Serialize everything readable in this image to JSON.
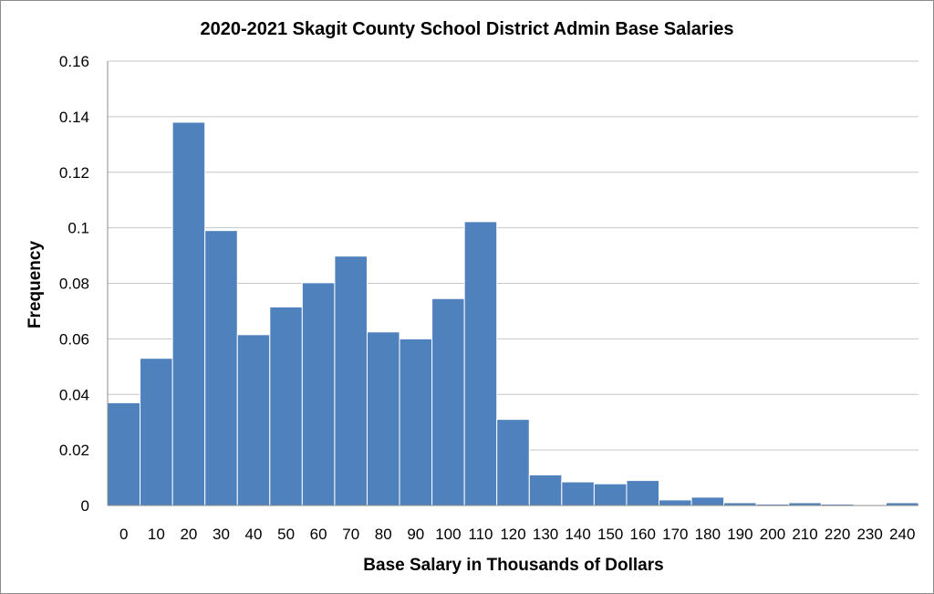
{
  "chart_data": {
    "type": "bar",
    "title": "2020-2021 Skagit County School District Admin Base Salaries",
    "xlabel": "Base Salary in Thousands of Dollars",
    "ylabel": "Frequency",
    "categories": [
      "0",
      "10",
      "20",
      "30",
      "40",
      "50",
      "60",
      "70",
      "80",
      "90",
      "100",
      "110",
      "120",
      "130",
      "140",
      "150",
      "160",
      "170",
      "180",
      "190",
      "200",
      "210",
      "220",
      "230",
      "240"
    ],
    "values": [
      0.037,
      0.053,
      0.138,
      0.099,
      0.0615,
      0.0715,
      0.0802,
      0.0898,
      0.0625,
      0.06,
      0.0745,
      0.1022,
      0.031,
      0.011,
      0.0085,
      0.0078,
      0.009,
      0.002,
      0.003,
      0.001,
      0.0005,
      0.001,
      0.0005,
      0.0,
      0.001
    ],
    "ylim": [
      0,
      0.16
    ],
    "yticks": [
      "0",
      "0.02",
      "0.04",
      "0.06",
      "0.08",
      "0.1",
      "0.12",
      "0.14",
      "0.16"
    ],
    "ytick_values": [
      0,
      0.02,
      0.04,
      0.06,
      0.08,
      0.1,
      0.12,
      0.14,
      0.16
    ],
    "grid": true,
    "legend": "none",
    "bar_color": "#4f81bd",
    "gridline_color": "#c6c6c6"
  }
}
